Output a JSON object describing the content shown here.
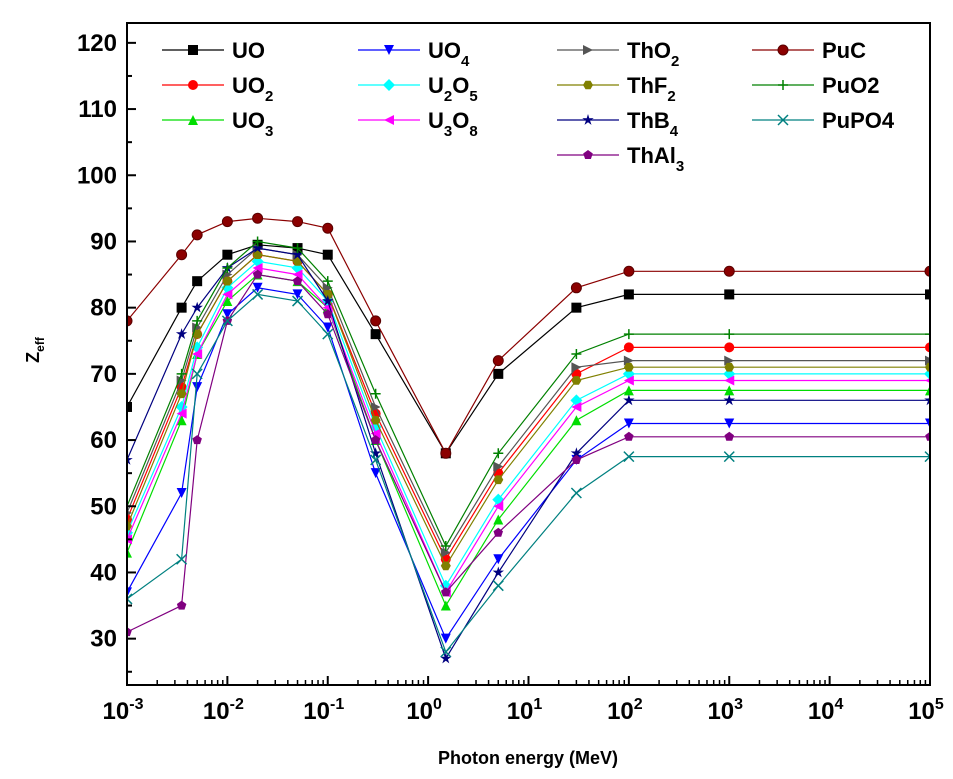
{
  "chart_data": {
    "type": "line",
    "xlabel": "Photon energy (MeV)",
    "ylabel": "Z",
    "ylabel_sub": "eff",
    "xscale": "log",
    "xlim": [
      0.001,
      100000
    ],
    "ylim": [
      23,
      123
    ],
    "x_ticks": [
      {
        "base": "10",
        "exp": "-3"
      },
      {
        "base": "10",
        "exp": "-2"
      },
      {
        "base": "10",
        "exp": "-1"
      },
      {
        "base": "10",
        "exp": "0"
      },
      {
        "base": "10",
        "exp": "1"
      },
      {
        "base": "10",
        "exp": "2"
      },
      {
        "base": "10",
        "exp": "3"
      },
      {
        "base": "10",
        "exp": "4"
      },
      {
        "base": "10",
        "exp": "5"
      }
    ],
    "y_ticks": [
      "30",
      "40",
      "50",
      "60",
      "70",
      "80",
      "90",
      "100",
      "110",
      "120"
    ],
    "legend_position": "top",
    "series": [
      {
        "name": "UO",
        "parts": [
          [
            "UO"
          ]
        ],
        "color": "#000000",
        "marker": "square",
        "y": [
          65,
          80,
          84,
          88,
          89.5,
          89,
          88,
          76,
          58,
          70,
          80,
          82,
          82,
          82
        ]
      },
      {
        "name": "UO2",
        "parts": [
          [
            "UO"
          ],
          [
            "2",
            "sub"
          ]
        ],
        "color": "#ff0000",
        "marker": "circle",
        "y": [
          48,
          68,
          76,
          84,
          88,
          87,
          82,
          64,
          42,
          55,
          70,
          74,
          74,
          74
        ]
      },
      {
        "name": "UO3",
        "parts": [
          [
            "UO"
          ],
          [
            "3",
            "sub"
          ]
        ],
        "color": "#00dd00",
        "marker": "triangle-up",
        "y": [
          43,
          63,
          73,
          81,
          85,
          84,
          80,
          60,
          35,
          48,
          63,
          67.5,
          67.5,
          67.5
        ]
      },
      {
        "name": "UO4",
        "parts": [
          [
            "UO"
          ],
          [
            "4",
            "sub"
          ]
        ],
        "color": "#0000ff",
        "marker": "triangle-down",
        "y": [
          37,
          52,
          68,
          79,
          83,
          82,
          77,
          55,
          30,
          42,
          57,
          62.5,
          62.5,
          62.5
        ]
      },
      {
        "name": "U2O5",
        "parts": [
          [
            "U"
          ],
          [
            "2",
            "sub"
          ],
          [
            "O"
          ],
          [
            "5",
            "sub"
          ]
        ],
        "color": "#00ffff",
        "marker": "diamond",
        "y": [
          46,
          65,
          74,
          83,
          87,
          86,
          81,
          62,
          38,
          51,
          66,
          70,
          70,
          70
        ]
      },
      {
        "name": "U3O8",
        "parts": [
          [
            "U"
          ],
          [
            "3",
            "sub"
          ],
          [
            "O"
          ],
          [
            "8",
            "sub"
          ]
        ],
        "color": "#ff00ff",
        "marker": "triangle-left",
        "y": [
          45,
          64,
          73,
          82,
          86,
          85,
          80,
          61,
          37,
          50,
          65,
          69,
          69,
          69
        ]
      },
      {
        "name": "ThO2",
        "parts": [
          [
            "ThO"
          ],
          [
            "2",
            "sub"
          ]
        ],
        "color": "#555555",
        "marker": "triangle-right",
        "y": [
          49,
          69,
          77,
          85,
          89,
          88,
          83,
          65,
          43,
          56,
          71,
          72,
          72,
          72
        ]
      },
      {
        "name": "ThF2",
        "parts": [
          [
            "ThF"
          ],
          [
            "2",
            "sub"
          ]
        ],
        "color": "#808000",
        "marker": "hexagon",
        "y": [
          47,
          67,
          76,
          84,
          88,
          87,
          82,
          63,
          41,
          54,
          69,
          71,
          71,
          71
        ]
      },
      {
        "name": "ThB4",
        "parts": [
          [
            "ThB"
          ],
          [
            "4",
            "sub"
          ]
        ],
        "color": "#000080",
        "marker": "star",
        "y": [
          57,
          76,
          80,
          86,
          89,
          88,
          81,
          58,
          27,
          40,
          58,
          66,
          66,
          66
        ]
      },
      {
        "name": "ThAl3",
        "parts": [
          [
            "ThAl"
          ],
          [
            "3",
            "sub"
          ]
        ],
        "color": "#800080",
        "marker": "pentagon",
        "y": [
          31,
          35,
          60,
          78,
          85,
          84,
          79,
          60,
          37,
          46,
          57,
          60.5,
          60.5,
          60.5
        ]
      },
      {
        "name": "PuC",
        "parts": [
          [
            "PuC"
          ]
        ],
        "color": "#8b0000",
        "marker": "ball",
        "y": [
          78,
          88,
          91,
          93,
          93.5,
          93,
          92,
          78,
          58,
          72,
          83,
          85.5,
          85.5,
          85.5
        ]
      },
      {
        "name": "PuO2",
        "parts": [
          [
            "PuO2"
          ]
        ],
        "color": "#008000",
        "marker": "plus",
        "y": [
          50,
          70,
          78,
          86,
          90,
          89,
          84,
          67,
          44,
          58,
          73,
          76,
          76,
          76
        ]
      },
      {
        "name": "PuPO4",
        "parts": [
          [
            "PuPO4"
          ]
        ],
        "color": "#008080",
        "marker": "cross",
        "y": [
          36,
          42,
          70,
          78,
          82,
          81,
          76,
          57,
          28,
          38,
          52,
          57.5,
          57.5,
          57.5
        ]
      }
    ],
    "x": [
      0.001,
      0.0035,
      0.005,
      0.01,
      0.02,
      0.05,
      0.1,
      0.3,
      1.5,
      5,
      30,
      100,
      1000,
      100000
    ]
  }
}
